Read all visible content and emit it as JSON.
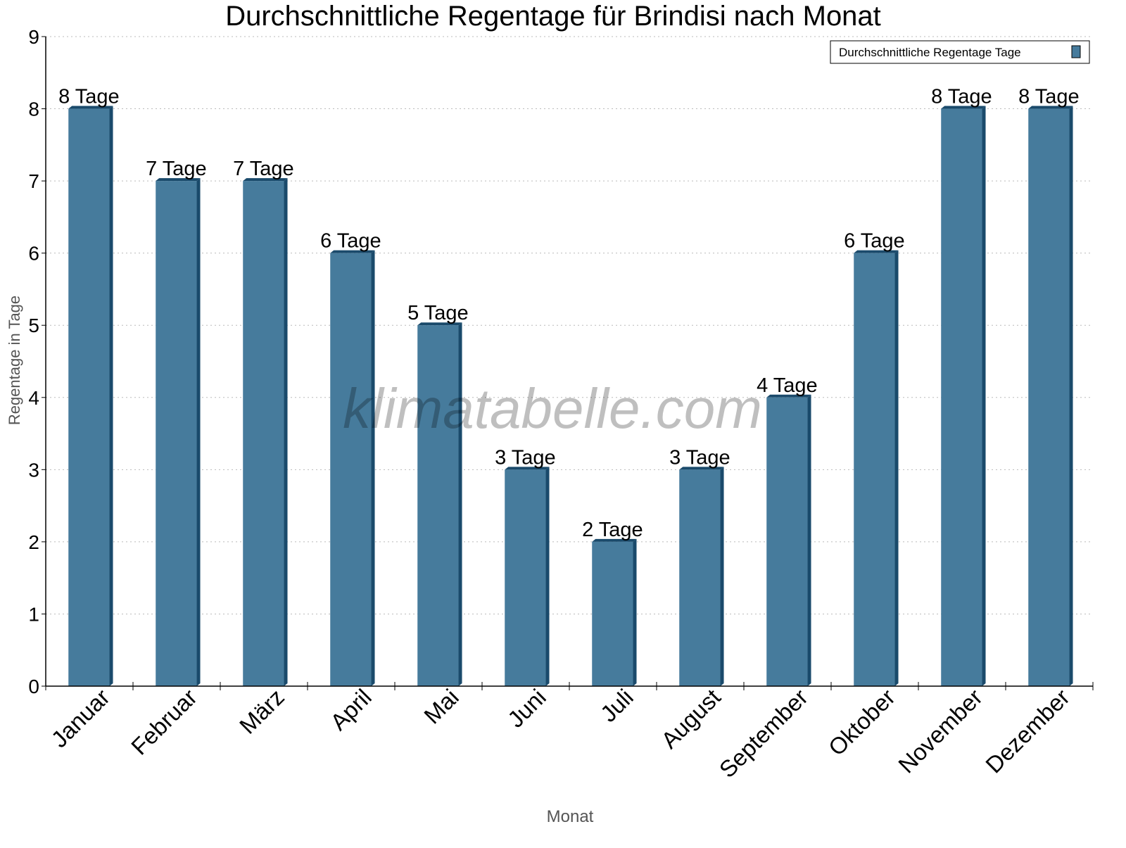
{
  "chart_data": {
    "type": "bar",
    "title": "Durchschnittliche Regentage für Brindisi nach Monat",
    "xlabel": "Monat",
    "ylabel": "Regentage in Tage",
    "categories": [
      "Januar",
      "Februar",
      "März",
      "April",
      "Mai",
      "Juni",
      "Juli",
      "August",
      "September",
      "Oktober",
      "November",
      "Dezember"
    ],
    "series": [
      {
        "name": "Durchschnittliche Regentage Tage",
        "values": [
          8,
          7,
          7,
          6,
          5,
          3,
          2,
          3,
          4,
          6,
          8,
          8
        ]
      }
    ],
    "data_labels": [
      "8 Tage",
      "7 Tage",
      "7 Tage",
      "6 Tage",
      "5 Tage",
      "3 Tage",
      "2 Tage",
      "3 Tage",
      "4 Tage",
      "6 Tage",
      "8 Tage",
      "8 Tage"
    ],
    "yticks": [
      0,
      1,
      2,
      3,
      4,
      5,
      6,
      7,
      8,
      9
    ],
    "ylim": [
      0,
      9
    ],
    "grid": true,
    "legend_position": "top-right",
    "watermark": "klimatabelle.com",
    "colors": {
      "bar": "#467b9c",
      "bar_side": "#1a4a6b"
    }
  }
}
